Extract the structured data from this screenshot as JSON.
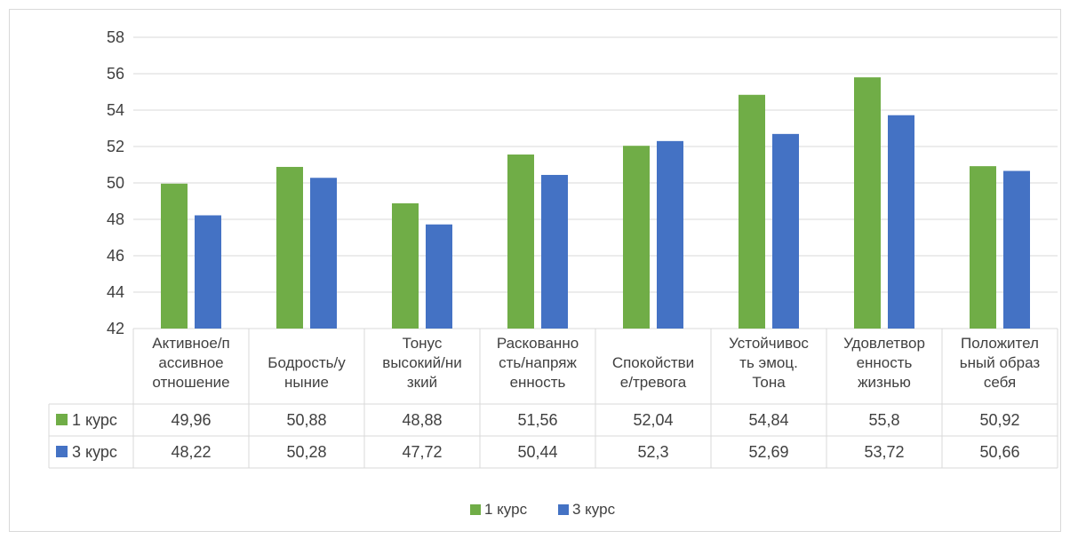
{
  "chart_data": {
    "type": "bar",
    "title": "",
    "xlabel": "",
    "ylabel": "",
    "ylim": [
      42,
      58
    ],
    "yticks": [
      42,
      44,
      46,
      48,
      50,
      52,
      54,
      56,
      58
    ],
    "grid": true,
    "legend_position": "bottom",
    "categories": [
      [
        "Активное/п",
        "ассивное",
        "отношение"
      ],
      [
        "Бодрость/у",
        "ныние"
      ],
      [
        "Тонус",
        "высокий/ни",
        "зкий"
      ],
      [
        "Раскованно",
        "сть/напряж",
        "енность"
      ],
      [
        "Спокойстви",
        "е/тревога"
      ],
      [
        "Устойчивос",
        "ть эмоц.",
        "Тона"
      ],
      [
        "Удовлетвор",
        "енность",
        "жизнью"
      ],
      [
        "Положител",
        "ьный образ",
        "себя"
      ]
    ],
    "series": [
      {
        "name": "1 курс",
        "color": "#70ad47",
        "values": [
          49.96,
          50.88,
          48.88,
          51.56,
          52.04,
          54.84,
          55.8,
          50.92
        ],
        "labels": [
          "49,96",
          "50,88",
          "48,88",
          "51,56",
          "52,04",
          "54,84",
          "55,8",
          "50,92"
        ]
      },
      {
        "name": "3 курс",
        "color": "#4472c4",
        "values": [
          48.22,
          50.28,
          47.72,
          50.44,
          52.3,
          52.69,
          53.72,
          50.66
        ],
        "labels": [
          "48,22",
          "50,28",
          "47,72",
          "50,44",
          "52,3",
          "52,69",
          "53,72",
          "50,66"
        ]
      }
    ]
  }
}
